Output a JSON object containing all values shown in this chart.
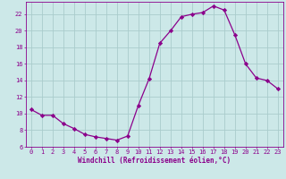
{
  "x": [
    0,
    1,
    2,
    3,
    4,
    5,
    6,
    7,
    8,
    9,
    10,
    11,
    12,
    13,
    14,
    15,
    16,
    17,
    18,
    19,
    20,
    21,
    22,
    23
  ],
  "y": [
    10.5,
    9.8,
    9.8,
    8.8,
    8.2,
    7.5,
    7.2,
    7.0,
    6.8,
    7.3,
    11.0,
    14.2,
    18.5,
    20.0,
    21.7,
    22.0,
    22.2,
    23.0,
    22.5,
    19.5,
    16.0,
    14.3,
    14.0,
    13.0
  ],
  "line_color": "#8b008b",
  "marker": "D",
  "marker_size": 2.2,
  "bg_color": "#cce8e8",
  "grid_color": "#aacccc",
  "xlabel": "Windchill (Refroidissement éolien,°C)",
  "xlim": [
    -0.5,
    23.5
  ],
  "ylim": [
    6,
    23.5
  ],
  "yticks": [
    6,
    8,
    10,
    12,
    14,
    16,
    18,
    20,
    22
  ],
  "xticks": [
    0,
    1,
    2,
    3,
    4,
    5,
    6,
    7,
    8,
    9,
    10,
    11,
    12,
    13,
    14,
    15,
    16,
    17,
    18,
    19,
    20,
    21,
    22,
    23
  ],
  "tick_color": "#8b008b",
  "label_color": "#8b008b",
  "axis_color": "#8b008b",
  "tick_fontsize": 5.0,
  "xlabel_fontsize": 5.5
}
